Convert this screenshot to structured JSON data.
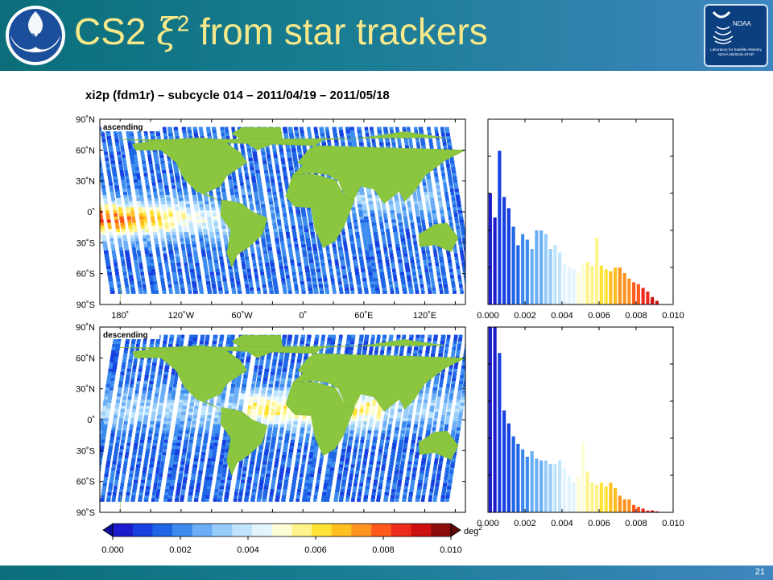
{
  "slide": {
    "title_prefix": "CS2 ",
    "title_symbol": "ξ",
    "title_exponent": "2",
    "title_suffix": " from star trackers",
    "slide_number": "21"
  },
  "logos": {
    "noaa_name": "NOAA",
    "lsa_lines": [
      "Laboratory for Satellite Altimetry",
      "NOAA-NESDIS-STAR"
    ],
    "colors": {
      "noaa_blue": "#1b4f9c",
      "lsa_navy": "#0c3f80"
    }
  },
  "chart_data": [
    {
      "type": "heatmap",
      "title": "xi2p (fdm1r) – subcycle 014 – 2011/04/19 – 2011/05/18",
      "panel_label": "ascending",
      "x_ticks": [
        "180˚",
        "120˚W",
        "60˚W",
        "0˚",
        "60˚E",
        "120˚E"
      ],
      "y_ticks": [
        "90˚N",
        "60˚N",
        "30˚N",
        "0˚",
        "30˚S",
        "60˚S",
        "90˚S"
      ],
      "lon_range": [
        -200,
        160
      ],
      "lat_range": [
        -90,
        90
      ],
      "value_range": [
        0,
        0.01
      ]
    },
    {
      "type": "heatmap",
      "panel_label": "descending",
      "y_ticks": [
        "90˚N",
        "60˚N",
        "30˚N",
        "0˚",
        "30˚S",
        "60˚S",
        "90˚S"
      ],
      "lon_range": [
        -200,
        160
      ],
      "lat_range": [
        -90,
        90
      ],
      "value_range": [
        0,
        0.01
      ]
    },
    {
      "type": "bar",
      "x_ticks": [
        "0.000",
        "0.002",
        "0.004",
        "0.006",
        "0.008",
        "0.010"
      ],
      "xlim": [
        0,
        0.01
      ],
      "bin_width": 0.00025,
      "values": [
        0.6,
        0.47,
        0.83,
        0.58,
        0.52,
        0.42,
        0.32,
        0.38,
        0.35,
        0.3,
        0.4,
        0.4,
        0.38,
        0.3,
        0.32,
        0.28,
        0.22,
        0.2,
        0.19,
        0.17,
        0.22,
        0.23,
        0.21,
        0.36,
        0.21,
        0.19,
        0.18,
        0.2,
        0.2,
        0.17,
        0.14,
        0.12,
        0.11,
        0.09,
        0.07,
        0.04,
        0.02,
        0,
        0,
        0
      ]
    },
    {
      "type": "bar",
      "x_ticks": [
        "0.000",
        "0.002",
        "0.004",
        "0.006",
        "0.008",
        "0.010"
      ],
      "xlim": [
        0,
        0.01
      ],
      "bin_width": 0.00025,
      "values": [
        1.0,
        1.0,
        0.86,
        0.55,
        0.48,
        0.41,
        0.37,
        0.34,
        0.3,
        0.33,
        0.29,
        0.28,
        0.28,
        0.26,
        0.26,
        0.28,
        0.24,
        0.2,
        0.16,
        0.19,
        0.38,
        0.22,
        0.16,
        0.15,
        0.16,
        0.14,
        0.16,
        0.13,
        0.09,
        0.07,
        0.07,
        0.04,
        0.03,
        0.02,
        0.01,
        0.01,
        0.005,
        0,
        0,
        0
      ]
    },
    {
      "type": "colorbar",
      "tick_labels": [
        "0.000",
        "0.002",
        "0.004",
        "0.006",
        "0.008",
        "0.010"
      ],
      "unit_label": "deg",
      "unit_exponent": "2",
      "value_range": [
        0,
        0.01
      ],
      "colors": [
        "#1c1ccc",
        "#1640e0",
        "#1f66e6",
        "#3c8cf0",
        "#6caef6",
        "#96ccfa",
        "#bfe4fc",
        "#e2f4fe",
        "#fdfdd6",
        "#fff48c",
        "#ffe233",
        "#ffbf1f",
        "#ff931f",
        "#ff5a1c",
        "#ee2a1c",
        "#cc1010",
        "#8c0b0b"
      ]
    }
  ]
}
